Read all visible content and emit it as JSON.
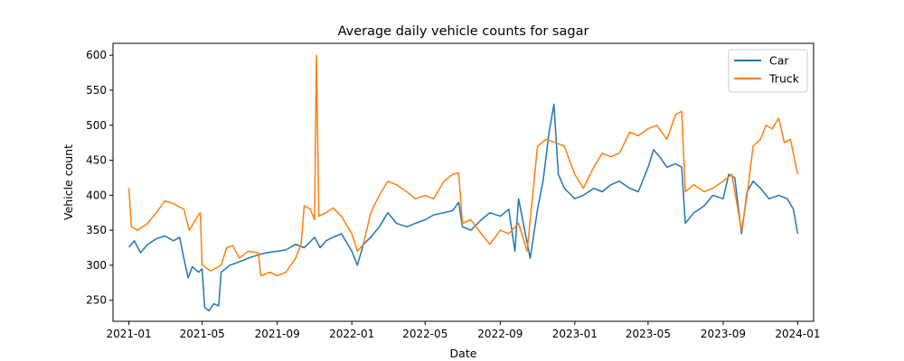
{
  "chart_data": {
    "type": "line",
    "title": "Average daily vehicle counts for sagar",
    "xlabel": "Date",
    "ylabel": "Vehicle count",
    "xlim": [
      "2020-12-06",
      "2024-01-27"
    ],
    "ylim": [
      220,
      617
    ],
    "x_ticks": [
      "2021-01",
      "2021-05",
      "2021-09",
      "2022-01",
      "2022-05",
      "2022-09",
      "2023-01",
      "2023-05",
      "2023-09",
      "2024-01"
    ],
    "x_tick_dates": [
      "2021-01-01",
      "2021-05-01",
      "2021-09-01",
      "2022-01-01",
      "2022-05-01",
      "2022-09-01",
      "2023-01-01",
      "2023-05-01",
      "2023-09-01",
      "2024-01-01"
    ],
    "y_ticks": [
      250,
      300,
      350,
      400,
      450,
      500,
      550,
      600
    ],
    "grid": false,
    "legend_position": "top-right",
    "series": [
      {
        "name": "Car",
        "color": "#1f77b4",
        "points": [
          [
            "2021-01-01",
            326
          ],
          [
            "2021-01-10",
            335
          ],
          [
            "2021-01-20",
            318
          ],
          [
            "2021-02-01",
            330
          ],
          [
            "2021-02-15",
            338
          ],
          [
            "2021-03-01",
            342
          ],
          [
            "2021-03-15",
            335
          ],
          [
            "2021-03-25",
            340
          ],
          [
            "2021-04-01",
            310
          ],
          [
            "2021-04-08",
            282
          ],
          [
            "2021-04-15",
            298
          ],
          [
            "2021-04-25",
            290
          ],
          [
            "2021-05-01",
            295
          ],
          [
            "2021-05-05",
            240
          ],
          [
            "2021-05-12",
            235
          ],
          [
            "2021-05-20",
            245
          ],
          [
            "2021-05-28",
            242
          ],
          [
            "2021-06-01",
            290
          ],
          [
            "2021-06-15",
            300
          ],
          [
            "2021-07-01",
            305
          ],
          [
            "2021-07-15",
            310
          ],
          [
            "2021-08-01",
            315
          ],
          [
            "2021-08-15",
            318
          ],
          [
            "2021-09-01",
            320
          ],
          [
            "2021-09-15",
            322
          ],
          [
            "2021-10-01",
            330
          ],
          [
            "2021-10-15",
            325
          ],
          [
            "2021-11-01",
            340
          ],
          [
            "2021-11-10",
            325
          ],
          [
            "2021-11-20",
            335
          ],
          [
            "2021-12-01",
            340
          ],
          [
            "2021-12-15",
            345
          ],
          [
            "2022-01-01",
            320
          ],
          [
            "2022-01-10",
            300
          ],
          [
            "2022-01-20",
            330
          ],
          [
            "2022-02-01",
            340
          ],
          [
            "2022-02-15",
            355
          ],
          [
            "2022-03-01",
            375
          ],
          [
            "2022-03-15",
            360
          ],
          [
            "2022-04-01",
            355
          ],
          [
            "2022-04-15",
            360
          ],
          [
            "2022-05-01",
            365
          ],
          [
            "2022-05-15",
            372
          ],
          [
            "2022-06-01",
            375
          ],
          [
            "2022-06-15",
            378
          ],
          [
            "2022-06-25",
            390
          ],
          [
            "2022-07-01",
            355
          ],
          [
            "2022-07-15",
            350
          ],
          [
            "2022-08-01",
            365
          ],
          [
            "2022-08-15",
            375
          ],
          [
            "2022-09-01",
            370
          ],
          [
            "2022-09-15",
            380
          ],
          [
            "2022-09-25",
            320
          ],
          [
            "2022-10-01",
            395
          ],
          [
            "2022-10-10",
            355
          ],
          [
            "2022-10-20",
            310
          ],
          [
            "2022-11-01",
            380
          ],
          [
            "2022-11-10",
            420
          ],
          [
            "2022-11-20",
            490
          ],
          [
            "2022-11-28",
            530
          ],
          [
            "2022-12-05",
            430
          ],
          [
            "2022-12-15",
            410
          ],
          [
            "2023-01-01",
            395
          ],
          [
            "2023-01-15",
            400
          ],
          [
            "2023-02-01",
            410
          ],
          [
            "2023-02-15",
            405
          ],
          [
            "2023-03-01",
            415
          ],
          [
            "2023-03-15",
            420
          ],
          [
            "2023-04-01",
            410
          ],
          [
            "2023-04-15",
            405
          ],
          [
            "2023-05-01",
            440
          ],
          [
            "2023-05-10",
            465
          ],
          [
            "2023-05-20",
            455
          ],
          [
            "2023-06-01",
            440
          ],
          [
            "2023-06-15",
            445
          ],
          [
            "2023-06-25",
            440
          ],
          [
            "2023-07-01",
            360
          ],
          [
            "2023-07-15",
            375
          ],
          [
            "2023-08-01",
            385
          ],
          [
            "2023-08-15",
            400
          ],
          [
            "2023-09-01",
            395
          ],
          [
            "2023-09-10",
            430
          ],
          [
            "2023-09-20",
            425
          ],
          [
            "2023-10-01",
            345
          ],
          [
            "2023-10-10",
            405
          ],
          [
            "2023-10-20",
            420
          ],
          [
            "2023-11-01",
            410
          ],
          [
            "2023-11-15",
            395
          ],
          [
            "2023-12-01",
            400
          ],
          [
            "2023-12-15",
            395
          ],
          [
            "2023-12-25",
            380
          ],
          [
            "2024-01-01",
            345
          ]
        ]
      },
      {
        "name": "Truck",
        "color": "#ff7f0e",
        "points": [
          [
            "2021-01-01",
            410
          ],
          [
            "2021-01-05",
            355
          ],
          [
            "2021-01-15",
            350
          ],
          [
            "2021-02-01",
            360
          ],
          [
            "2021-02-15",
            375
          ],
          [
            "2021-03-01",
            392
          ],
          [
            "2021-03-15",
            388
          ],
          [
            "2021-04-01",
            380
          ],
          [
            "2021-04-10",
            350
          ],
          [
            "2021-04-20",
            365
          ],
          [
            "2021-04-28",
            375
          ],
          [
            "2021-05-01",
            300
          ],
          [
            "2021-05-15",
            292
          ],
          [
            "2021-06-01",
            300
          ],
          [
            "2021-06-10",
            325
          ],
          [
            "2021-06-20",
            328
          ],
          [
            "2021-07-01",
            310
          ],
          [
            "2021-07-15",
            320
          ],
          [
            "2021-08-01",
            318
          ],
          [
            "2021-08-05",
            285
          ],
          [
            "2021-08-20",
            290
          ],
          [
            "2021-09-01",
            285
          ],
          [
            "2021-09-15",
            290
          ],
          [
            "2021-10-01",
            310
          ],
          [
            "2021-10-10",
            330
          ],
          [
            "2021-10-15",
            385
          ],
          [
            "2021-10-25",
            380
          ],
          [
            "2021-11-01",
            365
          ],
          [
            "2021-11-04",
            600
          ],
          [
            "2021-11-08",
            370
          ],
          [
            "2021-11-20",
            375
          ],
          [
            "2021-12-01",
            382
          ],
          [
            "2021-12-15",
            370
          ],
          [
            "2022-01-01",
            345
          ],
          [
            "2022-01-10",
            320
          ],
          [
            "2022-01-20",
            330
          ],
          [
            "2022-02-01",
            375
          ],
          [
            "2022-02-15",
            400
          ],
          [
            "2022-03-01",
            420
          ],
          [
            "2022-03-15",
            415
          ],
          [
            "2022-04-01",
            405
          ],
          [
            "2022-04-15",
            395
          ],
          [
            "2022-05-01",
            400
          ],
          [
            "2022-05-15",
            395
          ],
          [
            "2022-06-01",
            420
          ],
          [
            "2022-06-15",
            430
          ],
          [
            "2022-06-25",
            432
          ],
          [
            "2022-07-01",
            360
          ],
          [
            "2022-07-15",
            365
          ],
          [
            "2022-08-01",
            345
          ],
          [
            "2022-08-15",
            330
          ],
          [
            "2022-09-01",
            350
          ],
          [
            "2022-09-15",
            345
          ],
          [
            "2022-10-01",
            360
          ],
          [
            "2022-10-15",
            320
          ],
          [
            "2022-11-01",
            470
          ],
          [
            "2022-11-15",
            480
          ],
          [
            "2022-12-01",
            475
          ],
          [
            "2022-12-15",
            470
          ],
          [
            "2023-01-01",
            430
          ],
          [
            "2023-01-15",
            410
          ],
          [
            "2023-02-01",
            440
          ],
          [
            "2023-02-15",
            460
          ],
          [
            "2023-03-01",
            455
          ],
          [
            "2023-03-15",
            460
          ],
          [
            "2023-04-01",
            490
          ],
          [
            "2023-04-15",
            485
          ],
          [
            "2023-05-01",
            495
          ],
          [
            "2023-05-15",
            500
          ],
          [
            "2023-06-01",
            480
          ],
          [
            "2023-06-15",
            515
          ],
          [
            "2023-06-25",
            520
          ],
          [
            "2023-07-01",
            405
          ],
          [
            "2023-07-15",
            415
          ],
          [
            "2023-08-01",
            405
          ],
          [
            "2023-08-15",
            410
          ],
          [
            "2023-09-01",
            420
          ],
          [
            "2023-09-15",
            430
          ],
          [
            "2023-10-01",
            350
          ],
          [
            "2023-10-10",
            400
          ],
          [
            "2023-10-20",
            470
          ],
          [
            "2023-11-01",
            480
          ],
          [
            "2023-11-10",
            500
          ],
          [
            "2023-11-20",
            495
          ],
          [
            "2023-12-01",
            510
          ],
          [
            "2023-12-10",
            475
          ],
          [
            "2023-12-20",
            480
          ],
          [
            "2024-01-01",
            430
          ]
        ]
      }
    ]
  }
}
